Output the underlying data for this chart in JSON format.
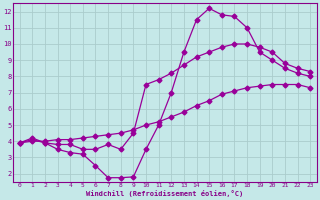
{
  "xlabel": "Windchill (Refroidissement éolien,°C)",
  "background_color": "#c5e8e8",
  "grid_color": "#aacccc",
  "line_color": "#990099",
  "spine_color": "#880088",
  "xlim": [
    -0.5,
    23.5
  ],
  "ylim": [
    1.5,
    12.5
  ],
  "xticks": [
    0,
    1,
    2,
    3,
    4,
    5,
    6,
    7,
    8,
    9,
    10,
    11,
    12,
    13,
    14,
    15,
    16,
    17,
    18,
    19,
    20,
    21,
    22,
    23
  ],
  "yticks": [
    2,
    3,
    4,
    5,
    6,
    7,
    8,
    9,
    10,
    11,
    12
  ],
  "line1_x": [
    0,
    1,
    2,
    3,
    4,
    5,
    6,
    7,
    8,
    9,
    10,
    11,
    12,
    13,
    14,
    15,
    16,
    17,
    18,
    19,
    20,
    21,
    22,
    23
  ],
  "line1_y": [
    3.9,
    4.2,
    3.9,
    3.5,
    3.3,
    3.2,
    2.5,
    1.75,
    1.75,
    1.8,
    3.5,
    5.0,
    7.0,
    9.5,
    11.5,
    12.2,
    11.8,
    11.7,
    11.0,
    9.5,
    9.0,
    8.5,
    8.2,
    8.0
  ],
  "line2_x": [
    0,
    1,
    2,
    3,
    4,
    5,
    6,
    7,
    8,
    9,
    10,
    11,
    12,
    13,
    14,
    15,
    16,
    17,
    18,
    19,
    20,
    21,
    22,
    23
  ],
  "line2_y": [
    3.9,
    4.1,
    3.9,
    3.8,
    3.8,
    3.5,
    3.5,
    3.8,
    3.5,
    4.5,
    7.5,
    7.8,
    8.2,
    8.7,
    9.2,
    9.5,
    9.8,
    10.0,
    10.0,
    9.8,
    9.5,
    8.8,
    8.5,
    8.3
  ],
  "line3_x": [
    0,
    1,
    2,
    3,
    4,
    5,
    6,
    7,
    8,
    9,
    10,
    11,
    12,
    13,
    14,
    15,
    16,
    17,
    18,
    19,
    20,
    21,
    22,
    23
  ],
  "line3_y": [
    3.9,
    4.0,
    4.0,
    4.1,
    4.1,
    4.2,
    4.3,
    4.4,
    4.5,
    4.7,
    5.0,
    5.2,
    5.5,
    5.8,
    6.2,
    6.5,
    6.9,
    7.1,
    7.3,
    7.4,
    7.5,
    7.5,
    7.5,
    7.3
  ]
}
